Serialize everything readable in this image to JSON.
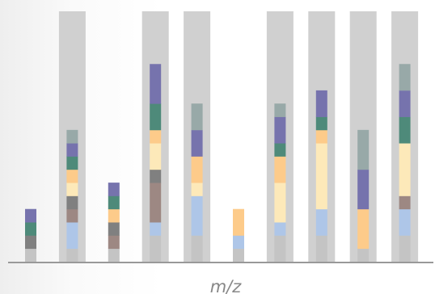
{
  "chart_data": {
    "type": "bar",
    "stacked": true,
    "xlabel": "m/z",
    "ylabel": "",
    "grid": false,
    "ylim": [
      0,
      19
    ],
    "background_columns": [
      false,
      true,
      false,
      true,
      true,
      false,
      true,
      true,
      true,
      true
    ],
    "segment_order": [
      "grey-base",
      "light-blue",
      "taupe",
      "dark-grey",
      "cream",
      "peach",
      "teal",
      "purple",
      "grey-green"
    ],
    "colors": {
      "grey-base": "#c4c4c4",
      "light-blue": "#aec6e8",
      "taupe": "#9d8883",
      "dark-grey": "#808080",
      "cream": "#fde9b9",
      "peach": "#fdcb8a",
      "teal": "#4e8a7a",
      "purple": "#7673ad",
      "grey-green": "#98a9a8",
      "column": "#d0d0d0",
      "axis": "#999999"
    },
    "series": [
      {
        "name": "",
        "key": "grey-base",
        "values": [
          1,
          1,
          1,
          2,
          2,
          1,
          2,
          2,
          1,
          2
        ]
      },
      {
        "name": "",
        "key": "light-blue",
        "values": [
          0,
          2,
          0,
          1,
          3,
          1,
          1,
          2,
          0,
          2
        ]
      },
      {
        "name": "",
        "key": "taupe",
        "values": [
          0,
          1,
          1,
          3,
          0,
          0,
          0,
          0,
          0,
          1
        ]
      },
      {
        "name": "",
        "key": "dark-grey",
        "values": [
          1,
          1,
          1,
          1,
          0,
          0,
          0,
          0,
          0,
          0
        ]
      },
      {
        "name": "",
        "key": "cream",
        "values": [
          0,
          1,
          0,
          2,
          1,
          0,
          3,
          5,
          0,
          4
        ]
      },
      {
        "name": "",
        "key": "peach",
        "values": [
          0,
          1,
          1,
          1,
          2,
          2,
          2,
          1,
          3,
          0
        ]
      },
      {
        "name": "",
        "key": "teal",
        "values": [
          1,
          1,
          1,
          2,
          0,
          0,
          1,
          1,
          0,
          2
        ]
      },
      {
        "name": "",
        "key": "purple",
        "values": [
          1,
          1,
          1,
          3,
          2,
          0,
          2,
          2,
          3,
          2
        ]
      },
      {
        "name": "",
        "key": "grey-green",
        "values": [
          0,
          1,
          0,
          0,
          2,
          0,
          1,
          0,
          3,
          2
        ]
      }
    ]
  }
}
